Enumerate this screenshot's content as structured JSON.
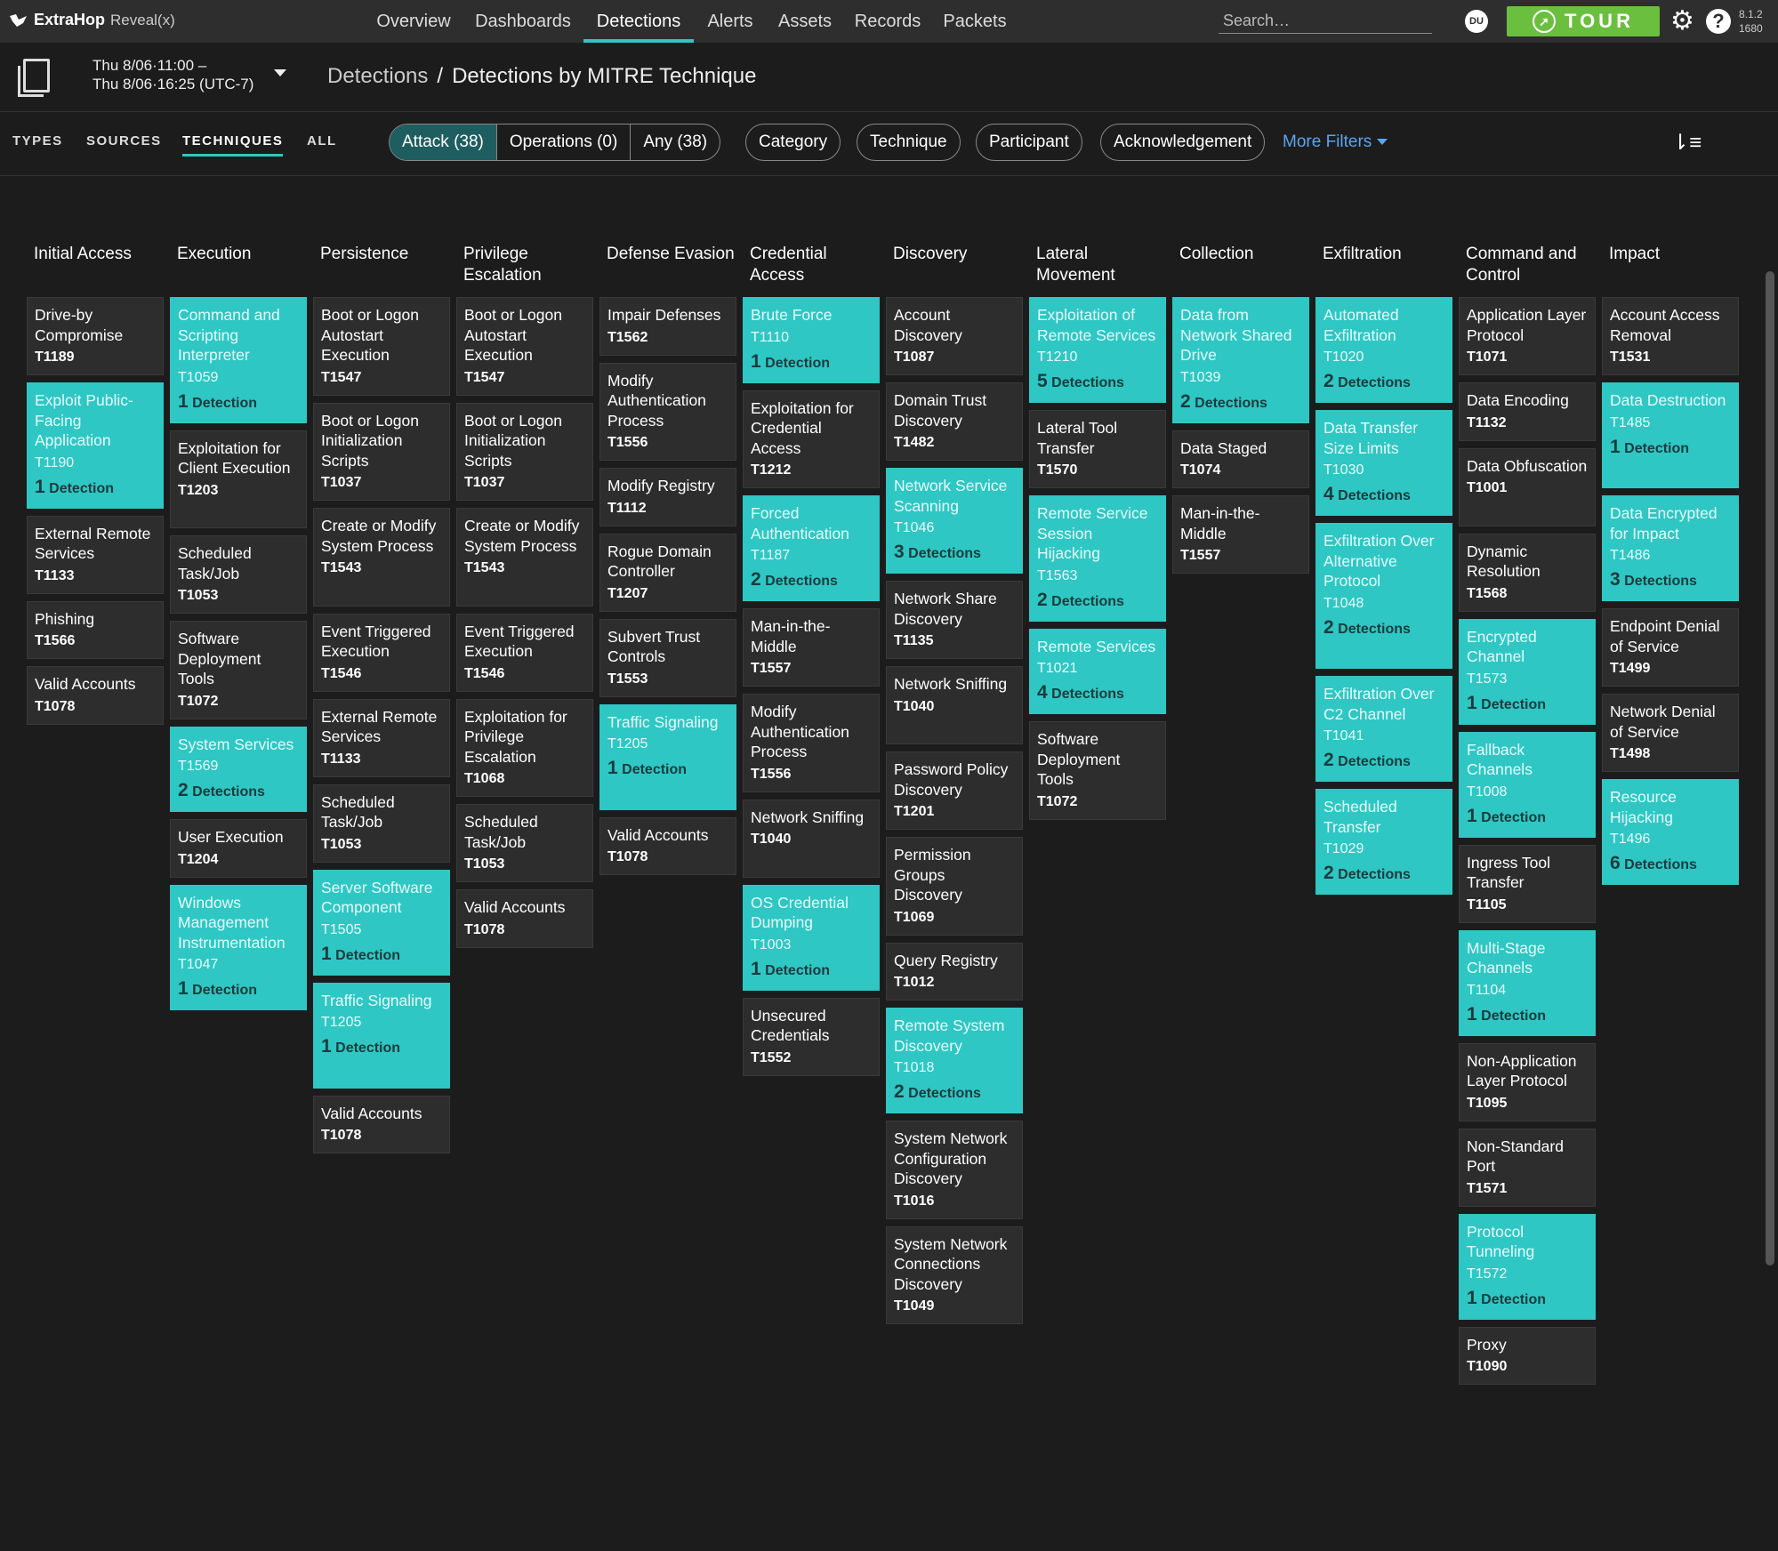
{
  "brand": {
    "name": "ExtraHop",
    "product": "Reveal(x)"
  },
  "nav": [
    "Overview",
    "Dashboards",
    "Detections",
    "Alerts",
    "Assets",
    "Records",
    "Packets"
  ],
  "nav_active": "Detections",
  "search": {
    "placeholder": "Search…"
  },
  "user_initials": "DU",
  "tour_label": "TOUR",
  "version": {
    "line1": "8.1.2",
    "line2": "1680"
  },
  "time_range": {
    "start": "Thu 8/06·11:00 –",
    "end": "Thu 8/06·16:25 (UTC-7)"
  },
  "breadcrumb": {
    "root": "Detections",
    "sep": "/",
    "current": "Detections by MITRE Technique"
  },
  "view_tabs": [
    "TYPES",
    "SOURCES",
    "TECHNIQUES",
    "ALL"
  ],
  "view_tab_active": "TECHNIQUES",
  "segment": [
    "Attack (38)",
    "Operations (0)",
    "Any (38)"
  ],
  "filters": [
    "Category",
    "Technique",
    "Participant",
    "Acknowledgement"
  ],
  "more_filters": "More Filters",
  "accent": "#2ec7c4",
  "columns": [
    {
      "title": "Initial Access",
      "tiles": [
        {
          "name": "Drive-by Compromise",
          "id": "T1189"
        },
        {
          "name": "Exploit Public-Facing Application",
          "id": "T1190",
          "n": "1",
          "label": "Detection"
        },
        {
          "name": "External Remote Services",
          "id": "T1133"
        },
        {
          "name": "Phishing",
          "id": "T1566"
        },
        {
          "name": "Valid Accounts",
          "id": "T1078"
        }
      ]
    },
    {
      "title": "Execution",
      "tiles": [
        {
          "name": "Command and Scripting Interpreter",
          "id": "T1059",
          "n": "1",
          "label": "Detection"
        },
        {
          "name": "Exploitation for Client Execution",
          "id": "T1203"
        },
        {
          "name": "Scheduled Task/Job",
          "id": "T1053"
        },
        {
          "name": "Software Deployment Tools",
          "id": "T1072"
        },
        {
          "name": "System Services",
          "id": "T1569",
          "n": "2",
          "label": "Detections"
        },
        {
          "name": "User Execution",
          "id": "T1204"
        },
        {
          "name": "Windows Management Instrumentation",
          "id": "T1047",
          "n": "1",
          "label": "Detection"
        }
      ]
    },
    {
      "title": "Persistence",
      "tiles": [
        {
          "name": "Boot or Logon Autostart Execution",
          "id": "T1547"
        },
        {
          "name": "Boot or Logon Initialization Scripts",
          "id": "T1037"
        },
        {
          "name": "Create or Modify System Process",
          "id": "T1543"
        },
        {
          "name": "Event Triggered Execution",
          "id": "T1546"
        },
        {
          "name": "External Remote Services",
          "id": "T1133"
        },
        {
          "name": "Scheduled Task/Job",
          "id": "T1053"
        },
        {
          "name": "Server Software Component",
          "id": "T1505",
          "n": "1",
          "label": "Detection"
        },
        {
          "name": "Traffic Signaling",
          "id": "T1205",
          "n": "1",
          "label": "Detection"
        },
        {
          "name": "Valid Accounts",
          "id": "T1078"
        }
      ]
    },
    {
      "title": "Privilege Escalation",
      "tiles": [
        {
          "name": "Boot or Logon Autostart Execution",
          "id": "T1547"
        },
        {
          "name": "Boot or Logon Initialization Scripts",
          "id": "T1037"
        },
        {
          "name": "Create or Modify System Process",
          "id": "T1543"
        },
        {
          "name": "Event Triggered Execution",
          "id": "T1546"
        },
        {
          "name": "Exploitation for Privilege Escalation",
          "id": "T1068"
        },
        {
          "name": "Scheduled Task/Job",
          "id": "T1053"
        },
        {
          "name": "Valid Accounts",
          "id": "T1078"
        }
      ]
    },
    {
      "title": "Defense Evasion",
      "tiles": [
        {
          "name": "Impair Defenses",
          "id": "T1562"
        },
        {
          "name": "Modify Authentication Process",
          "id": "T1556"
        },
        {
          "name": "Modify Registry",
          "id": "T1112"
        },
        {
          "name": "Rogue Domain Controller",
          "id": "T1207"
        },
        {
          "name": "Subvert Trust Controls",
          "id": "T1553"
        },
        {
          "name": "Traffic Signaling",
          "id": "T1205",
          "n": "1",
          "label": "Detection"
        },
        {
          "name": "Valid Accounts",
          "id": "T1078"
        }
      ]
    },
    {
      "title": "Credential Access",
      "tiles": [
        {
          "name": "Brute Force",
          "id": "T1110",
          "n": "1",
          "label": "Detection"
        },
        {
          "name": "Exploitation for Credential Access",
          "id": "T1212"
        },
        {
          "name": "Forced Authentication",
          "id": "T1187",
          "n": "2",
          "label": "Detections"
        },
        {
          "name": "Man-in-the-Middle",
          "id": "T1557"
        },
        {
          "name": "Modify Authentication Process",
          "id": "T1556"
        },
        {
          "name": "Network Sniffing",
          "id": "T1040"
        },
        {
          "name": "OS Credential Dumping",
          "id": "T1003",
          "n": "1",
          "label": "Detection"
        },
        {
          "name": "Unsecured Credentials",
          "id": "T1552"
        }
      ]
    },
    {
      "title": "Discovery",
      "tiles": [
        {
          "name": "Account Discovery",
          "id": "T1087"
        },
        {
          "name": "Domain Trust Discovery",
          "id": "T1482"
        },
        {
          "name": "Network Service Scanning",
          "id": "T1046",
          "n": "3",
          "label": "Detections"
        },
        {
          "name": "Network Share Discovery",
          "id": "T1135"
        },
        {
          "name": "Network Sniffing",
          "id": "T1040"
        },
        {
          "name": "Password Policy Discovery",
          "id": "T1201"
        },
        {
          "name": "Permission Groups Discovery",
          "id": "T1069"
        },
        {
          "name": "Query Registry",
          "id": "T1012"
        },
        {
          "name": "Remote System Discovery",
          "id": "T1018",
          "n": "2",
          "label": "Detections"
        },
        {
          "name": "System Network Configuration Discovery",
          "id": "T1016"
        },
        {
          "name": "System Network Connections Discovery",
          "id": "T1049"
        }
      ]
    },
    {
      "title": "Lateral Movement",
      "tiles": [
        {
          "name": "Exploitation of Remote Services",
          "id": "T1210",
          "n": "5",
          "label": "Detections"
        },
        {
          "name": "Lateral Tool Transfer",
          "id": "T1570"
        },
        {
          "name": "Remote Service Session Hijacking",
          "id": "T1563",
          "n": "2",
          "label": "Detections"
        },
        {
          "name": "Remote Services",
          "id": "T1021",
          "n": "4",
          "label": "Detections"
        },
        {
          "name": "Software Deployment Tools",
          "id": "T1072"
        }
      ]
    },
    {
      "title": "Collection",
      "tiles": [
        {
          "name": "Data from Network Shared Drive",
          "id": "T1039",
          "n": "2",
          "label": "Detections"
        },
        {
          "name": "Data Staged",
          "id": "T1074"
        },
        {
          "name": "Man-in-the-Middle",
          "id": "T1557"
        }
      ]
    },
    {
      "title": "Exfiltration",
      "tiles": [
        {
          "name": "Automated Exfiltration",
          "id": "T1020",
          "n": "2",
          "label": "Detections"
        },
        {
          "name": "Data Transfer Size Limits",
          "id": "T1030",
          "n": "4",
          "label": "Detections"
        },
        {
          "name": "Exfiltration Over Alternative Protocol",
          "id": "T1048",
          "n": "2",
          "label": "Detections"
        },
        {
          "name": "Exfiltration Over C2 Channel",
          "id": "T1041",
          "n": "2",
          "label": "Detections"
        },
        {
          "name": "Scheduled Transfer",
          "id": "T1029",
          "n": "2",
          "label": "Detections"
        }
      ]
    },
    {
      "title": "Command and Control",
      "tiles": [
        {
          "name": "Application Layer Protocol",
          "id": "T1071"
        },
        {
          "name": "Data Encoding",
          "id": "T1132"
        },
        {
          "name": "Data Obfuscation",
          "id": "T1001"
        },
        {
          "name": "Dynamic Resolution",
          "id": "T1568"
        },
        {
          "name": "Encrypted Channel",
          "id": "T1573",
          "n": "1",
          "label": "Detection"
        },
        {
          "name": "Fallback Channels",
          "id": "T1008",
          "n": "1",
          "label": "Detection"
        },
        {
          "name": "Ingress Tool Transfer",
          "id": "T1105"
        },
        {
          "name": "Multi-Stage Channels",
          "id": "T1104",
          "n": "1",
          "label": "Detection"
        },
        {
          "name": "Non-Application Layer Protocol",
          "id": "T1095"
        },
        {
          "name": "Non-Standard Port",
          "id": "T1571"
        },
        {
          "name": "Protocol Tunneling",
          "id": "T1572",
          "n": "1",
          "label": "Detection"
        },
        {
          "name": "Proxy",
          "id": "T1090"
        }
      ]
    },
    {
      "title": "Impact",
      "tiles": [
        {
          "name": "Account Access Removal",
          "id": "T1531"
        },
        {
          "name": "Data Destruction",
          "id": "T1485",
          "n": "1",
          "label": "Detection"
        },
        {
          "name": "Data Encrypted for Impact",
          "id": "T1486",
          "n": "3",
          "label": "Detections"
        },
        {
          "name": "Endpoint Denial of Service",
          "id": "T1499"
        },
        {
          "name": "Network Denial of Service",
          "id": "T1498"
        },
        {
          "name": "Resource Hijacking",
          "id": "T1496",
          "n": "6",
          "label": "Detections"
        }
      ]
    }
  ]
}
